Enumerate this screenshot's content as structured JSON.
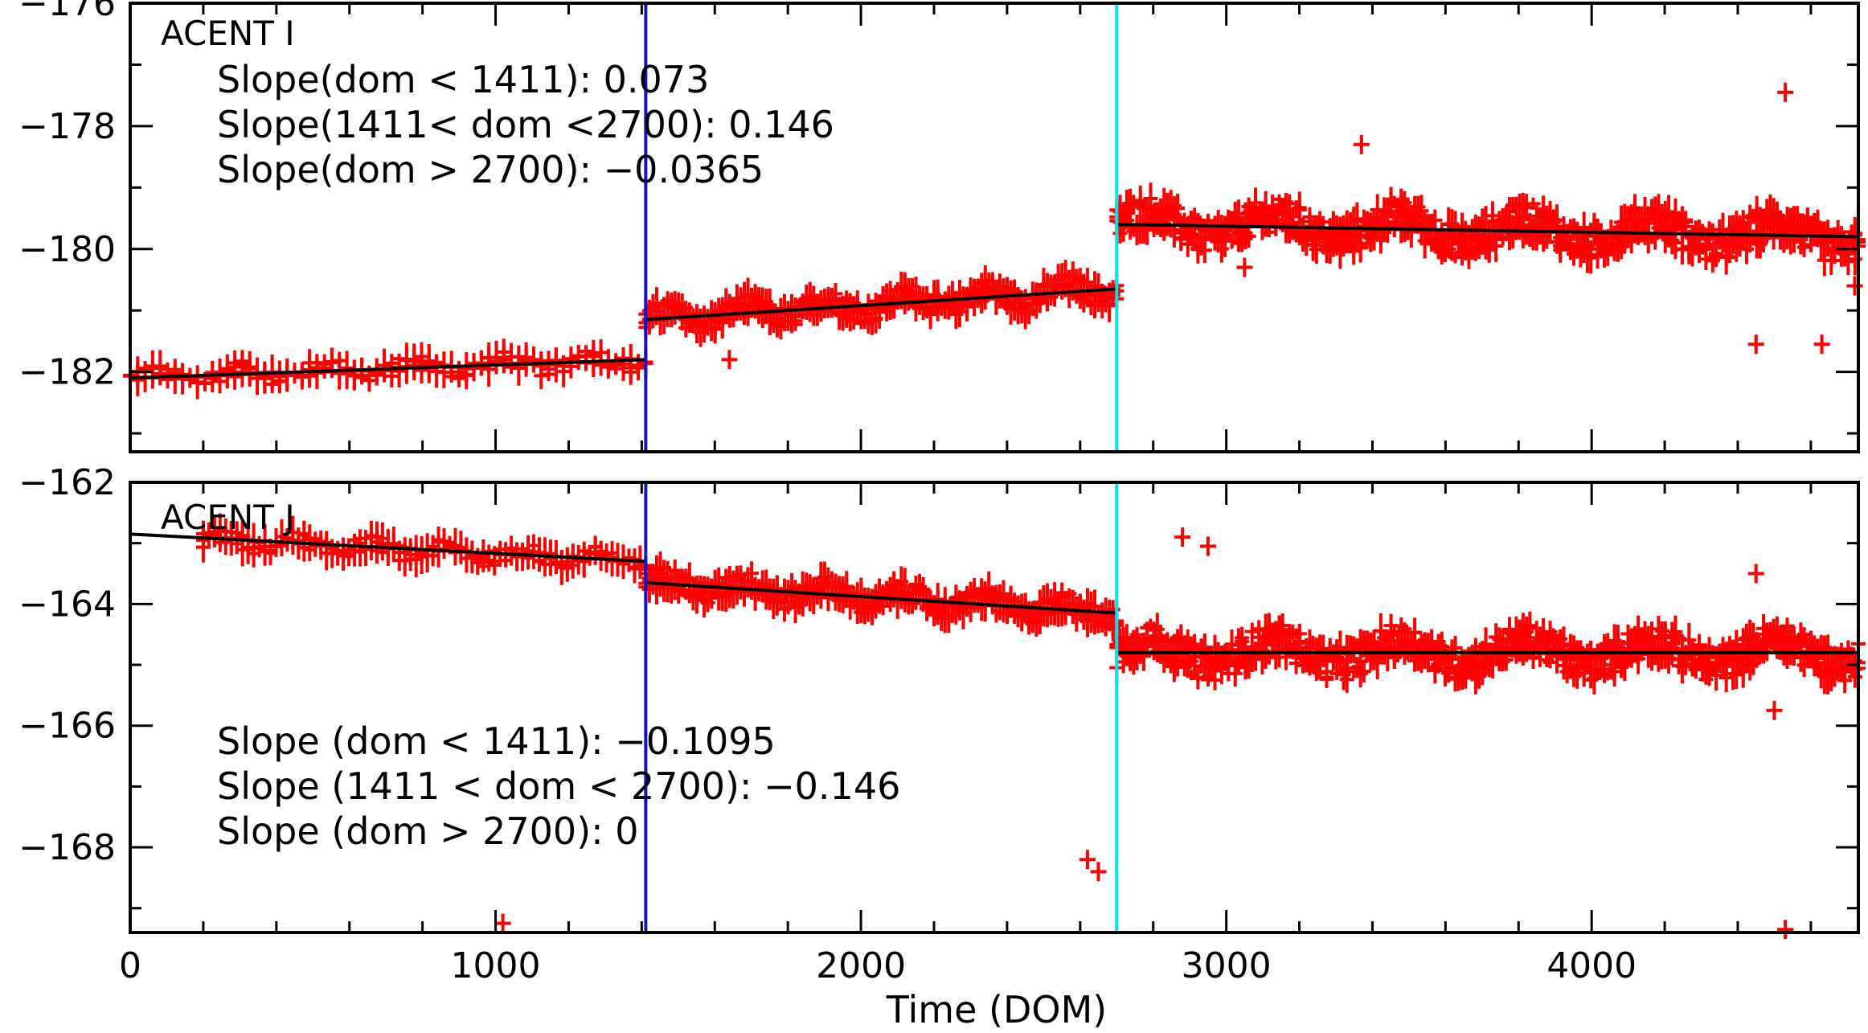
{
  "chart_data": [
    {
      "type": "scatter",
      "title": "ACENT I",
      "xlabel": "",
      "ylabel": "",
      "xlim": [
        0,
        4730
      ],
      "ylim": [
        -183.3,
        -176
      ],
      "y_ticks": [
        -182,
        -180,
        -178,
        -176
      ],
      "y_tick_labels": [
        "−182",
        "−180",
        "−178",
        "−176"
      ],
      "x_ticks": [
        0,
        1000,
        2000,
        3000,
        4000
      ],
      "x_tick_labels": [
        "",
        "",
        "",
        "",
        ""
      ],
      "annotations": [
        "Slope(dom < 1411): 0.073",
        "Slope(1411< dom <2700): 0.146",
        "Slope(dom > 2700): −0.0365"
      ],
      "vlines": [
        {
          "x": 1411,
          "color": "#1111cc"
        },
        {
          "x": 2700,
          "color": "#00e5ee"
        }
      ],
      "fit_lines": [
        {
          "x": [
            0,
            1411
          ],
          "y": [
            -182.1,
            -181.8
          ]
        },
        {
          "x": [
            1411,
            2700
          ],
          "y": [
            -181.15,
            -180.65
          ]
        },
        {
          "x": [
            2700,
            4730
          ],
          "y": [
            -179.6,
            -179.8
          ]
        }
      ],
      "bands": [
        {
          "x": [
            0,
            1411
          ],
          "y_start": -182.1,
          "y_end": -181.8,
          "spread": 0.25,
          "density": 70
        },
        {
          "x": [
            1411,
            2700
          ],
          "y_start": -181.15,
          "y_end": -180.65,
          "spread": 0.35,
          "density": 130
        },
        {
          "x": [
            2700,
            4730
          ],
          "y_start": -179.6,
          "y_end": -179.8,
          "spread": 0.55,
          "density": 220
        }
      ],
      "outliers": [
        {
          "x": 4530,
          "y": -177.45
        },
        {
          "x": 3370,
          "y": -178.3
        },
        {
          "x": 4450,
          "y": -181.55
        },
        {
          "x": 4630,
          "y": -181.55
        },
        {
          "x": 3050,
          "y": -180.3
        },
        {
          "x": 1640,
          "y": -181.8
        },
        {
          "x": 4720,
          "y": -180.6
        }
      ],
      "marker_color": "#ff0000",
      "fit_color": "#000000"
    },
    {
      "type": "scatter",
      "title": "ACENT J",
      "xlabel": "Time (DOM)",
      "ylabel": "",
      "xlim": [
        0,
        4730
      ],
      "ylim": [
        -169.4,
        -162
      ],
      "y_ticks": [
        -168,
        -166,
        -164,
        -162
      ],
      "y_tick_labels": [
        "−168",
        "−166",
        "−164",
        "−162"
      ],
      "x_ticks": [
        0,
        1000,
        2000,
        3000,
        4000
      ],
      "x_tick_labels": [
        "0",
        "1000",
        "2000",
        "3000",
        "4000"
      ],
      "annotations": [
        "Slope (dom < 1411): −0.1095",
        "Slope (1411 < dom < 2700): −0.146",
        "Slope (dom > 2700): 0"
      ],
      "vlines": [
        {
          "x": 1411,
          "color": "#1111cc"
        },
        {
          "x": 2700,
          "color": "#00e5ee"
        }
      ],
      "fit_lines": [
        {
          "x": [
            0,
            1411
          ],
          "y": [
            -162.85,
            -163.3
          ]
        },
        {
          "x": [
            1411,
            2700
          ],
          "y": [
            -163.65,
            -164.15
          ]
        },
        {
          "x": [
            2700,
            4730
          ],
          "y": [
            -164.8,
            -164.8
          ]
        }
      ],
      "bands": [
        {
          "x": [
            200,
            1411
          ],
          "y_start": -162.95,
          "y_end": -163.3,
          "spread": 0.25,
          "density": 80
        },
        {
          "x": [
            1411,
            2700
          ],
          "y_start": -163.65,
          "y_end": -164.15,
          "spread": 0.35,
          "density": 130
        },
        {
          "x": [
            2700,
            4730
          ],
          "y_start": -164.8,
          "y_end": -164.8,
          "spread": 0.55,
          "density": 220
        }
      ],
      "outliers": [
        {
          "x": 2880,
          "y": -162.9
        },
        {
          "x": 2950,
          "y": -163.05
        },
        {
          "x": 2620,
          "y": -168.2
        },
        {
          "x": 2650,
          "y": -168.4
        },
        {
          "x": 4530,
          "y": -169.35
        },
        {
          "x": 1020,
          "y": -169.25
        },
        {
          "x": 4500,
          "y": -165.75
        },
        {
          "x": 4450,
          "y": -163.5
        }
      ],
      "marker_color": "#ff0000",
      "fit_color": "#000000"
    }
  ]
}
